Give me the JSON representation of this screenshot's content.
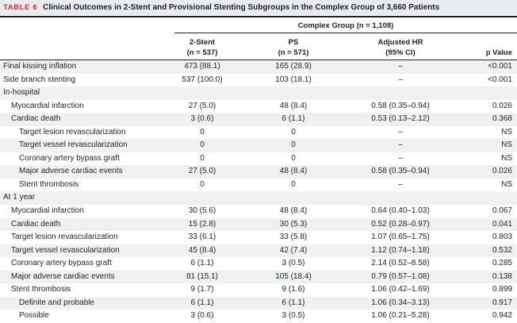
{
  "table": {
    "number": "TABLE 6",
    "title": "Clinical Outcomes in 2-Stent and Provisional Stenting Subgroups in the Complex Group of 3,660 Patients",
    "group_header": "Complex Group (n = 1,108)",
    "columns": {
      "two_stent": {
        "line1": "2-Stent",
        "line2": "(n = 537)"
      },
      "ps": {
        "line1": "PS",
        "line2": "(n = 571)"
      },
      "hr": {
        "line1": "Adjusted HR",
        "line2": "(95% CI)"
      },
      "pvalue": "p Value"
    },
    "rows": [
      {
        "label": "Final kissing inflation",
        "indent": 0,
        "shaded": true,
        "two_stent": "473 (88.1)",
        "ps": "165 (28.9)",
        "hr": "–",
        "p": "<0.001"
      },
      {
        "label": "Side branch stenting",
        "indent": 0,
        "shaded": false,
        "two_stent": "537 (100.0)",
        "ps": "103 (18.1)",
        "hr": "–",
        "p": "<0.001"
      },
      {
        "label": "In-hospital",
        "indent": 0,
        "shaded": true,
        "two_stent": "",
        "ps": "",
        "hr": "",
        "p": ""
      },
      {
        "label": "Myocardial infarction",
        "indent": 1,
        "shaded": false,
        "two_stent": "27 (5.0)",
        "ps": "48 (8.4)",
        "hr": "0.58 (0.35–0.94)",
        "p": "0.026"
      },
      {
        "label": "Cardiac death",
        "indent": 1,
        "shaded": true,
        "two_stent": "3 (0.6)",
        "ps": "6 (1.1)",
        "hr": "0.53 (0.13–2.12)",
        "p": "0.368"
      },
      {
        "label": "Target lesion revascularization",
        "indent": 2,
        "shaded": false,
        "two_stent": "0",
        "ps": "0",
        "hr": "–",
        "p": "NS"
      },
      {
        "label": "Target vessel revascularization",
        "indent": 2,
        "shaded": true,
        "two_stent": "0",
        "ps": "0",
        "hr": "–",
        "p": "NS"
      },
      {
        "label": "Coronary artery bypass graft",
        "indent": 2,
        "shaded": false,
        "two_stent": "0",
        "ps": "0",
        "hr": "–",
        "p": "NS"
      },
      {
        "label": "Major adverse cardiac events",
        "indent": 2,
        "shaded": true,
        "two_stent": "27 (5.0)",
        "ps": "48 (8.4)",
        "hr": "0.58 (0.35–0.94)",
        "p": "0.026"
      },
      {
        "label": "Stent thrombosis",
        "indent": 2,
        "shaded": false,
        "two_stent": "0",
        "ps": "0",
        "hr": "–",
        "p": "NS"
      },
      {
        "label": "At 1 year",
        "indent": 0,
        "shaded": true,
        "two_stent": "",
        "ps": "",
        "hr": "",
        "p": ""
      },
      {
        "label": "Myocardial infarction",
        "indent": 1,
        "shaded": false,
        "two_stent": "30 (5.6)",
        "ps": "48 (8.4)",
        "hr": "0.64 (0.40–1.03)",
        "p": "0.067"
      },
      {
        "label": "Cardiac death",
        "indent": 1,
        "shaded": true,
        "two_stent": "15 (2.8)",
        "ps": "30 (5.3)",
        "hr": "0.52 (0.28–0.97)",
        "p": "0.041"
      },
      {
        "label": "Target lesion revascularization",
        "indent": 1,
        "shaded": false,
        "two_stent": "33 (6.1)",
        "ps": "33 (5.8)",
        "hr": "1.07 (0.65–1.75)",
        "p": "0.803"
      },
      {
        "label": "Target vessel revascularization",
        "indent": 1,
        "shaded": true,
        "two_stent": "45 (8.4)",
        "ps": "42 (7.4)",
        "hr": "1.12 (0.74–1.18)",
        "p": "0.532"
      },
      {
        "label": "Coronary artery bypass graft",
        "indent": 1,
        "shaded": false,
        "two_stent": "6 (1.1)",
        "ps": "3 (0.5)",
        "hr": "2.14 (0.52–8.58)",
        "p": "0.285"
      },
      {
        "label": "Major adverse cardiac events",
        "indent": 1,
        "shaded": true,
        "two_stent": "81 (15.1)",
        "ps": "105 (18.4)",
        "hr": "0.79 (0.57–1.08)",
        "p": "0.138"
      },
      {
        "label": "Stent thrombosis",
        "indent": 1,
        "shaded": false,
        "two_stent": "9 (1.7)",
        "ps": "9 (1.6)",
        "hr": "1.06 (0.42–1.69)",
        "p": "0.899"
      },
      {
        "label": "Definite and probable",
        "indent": 2,
        "shaded": true,
        "two_stent": "6 (1.1)",
        "ps": "6 (1.1)",
        "hr": "1.06 (0.34–3.13)",
        "p": "0.917"
      },
      {
        "label": "Possible",
        "indent": 2,
        "shaded": false,
        "two_stent": "3 (0.6)",
        "ps": "3 (0.5)",
        "hr": "1.06 (0.21–5.28)",
        "p": "0.942"
      }
    ]
  }
}
